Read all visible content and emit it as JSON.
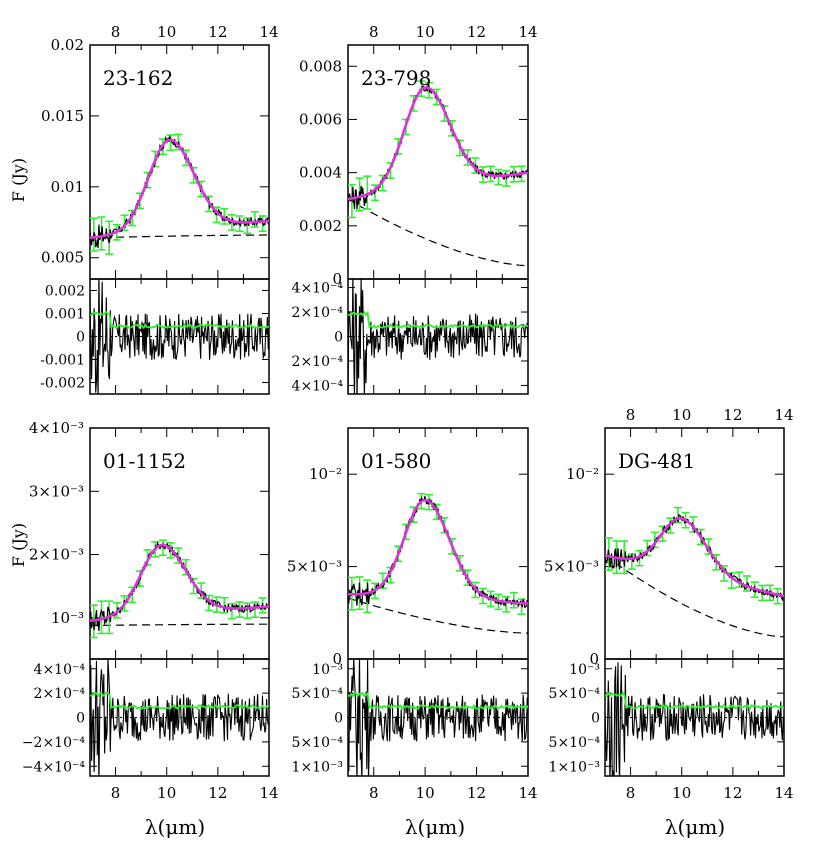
{
  "figure": {
    "ylabel": "F (Jy)",
    "xlabel": "λ(μm)"
  },
  "colors": {
    "data": "#000000",
    "error_bars": "#33ee33",
    "model": "#dd33dd",
    "photosphere": "#000000",
    "residual_error": "#33ee33"
  },
  "chart_data": [
    {
      "type": "line",
      "name": "23-162",
      "x_range": [
        7,
        14
      ],
      "top_x_ticks": [
        "8",
        "10",
        "12",
        "14"
      ],
      "y_range": [
        0.0035,
        0.02
      ],
      "y_ticks": [
        {
          "v": 0.005,
          "label": "0.005"
        },
        {
          "v": 0.01,
          "label": "0.01"
        },
        {
          "v": 0.015,
          "label": "0.015"
        },
        {
          "v": 0.02,
          "label": "0.02"
        }
      ],
      "model_peak": 0.0133,
      "peak_wavelength": 10.1,
      "model_start": 0.0064,
      "model_end": 0.0076,
      "photosphere": [
        0.0064,
        0.0066
      ],
      "residual_range": [
        -0.0025,
        0.0025
      ],
      "residual_ticks": [
        {
          "v": 0.002,
          "label": "0.002"
        },
        {
          "v": 0.001,
          "label": "0.001"
        },
        {
          "v": 0,
          "label": "0"
        },
        {
          "v": -0.001,
          "label": "-0.001"
        },
        {
          "v": -0.002,
          "label": "-0.002"
        }
      ]
    },
    {
      "type": "line",
      "name": "23-798",
      "x_range": [
        7,
        14
      ],
      "top_x_ticks": [
        "8",
        "10",
        "12",
        "14"
      ],
      "y_range": [
        0,
        0.0088
      ],
      "y_ticks": [
        {
          "v": 0,
          "label": "0"
        },
        {
          "v": 0.002,
          "label": "0.002"
        },
        {
          "v": 0.004,
          "label": "0.004"
        },
        {
          "v": 0.006,
          "label": "0.006"
        },
        {
          "v": 0.008,
          "label": "0.008"
        }
      ],
      "model_peak": 0.0072,
      "peak_wavelength": 10.0,
      "model_start": 0.003,
      "model_end": 0.004,
      "photosphere": [
        0.003,
        0.0005
      ],
      "residual_range": [
        -0.00047,
        0.00047
      ],
      "residual_ticks": [
        {
          "v": 0.0004,
          "label": "4×10⁻⁴"
        },
        {
          "v": 0.0002,
          "label": "2×10⁻⁴"
        },
        {
          "v": 0,
          "label": "0"
        },
        {
          "v": -0.0002,
          "label": "2×10⁻⁴"
        },
        {
          "v": -0.0004,
          "label": "4×10⁻⁴"
        }
      ]
    },
    {
      "type": "line",
      "name": "01-1152",
      "x_range": [
        7,
        14
      ],
      "bottom_x_ticks": [
        "8",
        "10",
        "12",
        "14"
      ],
      "y_range": [
        0.00035,
        0.004
      ],
      "y_ticks": [
        {
          "v": 0.001,
          "label": "10⁻³"
        },
        {
          "v": 0.002,
          "label": "2×10⁻³"
        },
        {
          "v": 0.003,
          "label": "3×10⁻³"
        },
        {
          "v": 0.004,
          "label": "4×10⁻³"
        }
      ],
      "model_peak": 0.00215,
      "peak_wavelength": 9.8,
      "model_start": 0.00095,
      "model_end": 0.00118,
      "photosphere": [
        0.00088,
        0.0009
      ],
      "residual_range": [
        -0.00048,
        0.00048
      ],
      "residual_ticks": [
        {
          "v": 0.0004,
          "label": "4×10⁻⁴"
        },
        {
          "v": 0.0002,
          "label": "2×10⁻⁴"
        },
        {
          "v": 0,
          "label": "0"
        },
        {
          "v": -0.0002,
          "label": "−2×10⁻⁴"
        },
        {
          "v": -0.0004,
          "label": "−4×10⁻⁴"
        }
      ]
    },
    {
      "type": "line",
      "name": "01-580",
      "x_range": [
        7,
        14
      ],
      "bottom_x_ticks": [
        "8",
        "10",
        "12",
        "14"
      ],
      "y_range": [
        0,
        0.0125
      ],
      "y_ticks": [
        {
          "v": 0,
          "label": "0"
        },
        {
          "v": 0.005,
          "label": "5×10⁻³"
        },
        {
          "v": 0.01,
          "label": "10⁻²"
        }
      ],
      "model_peak": 0.0086,
      "peak_wavelength": 10.0,
      "model_start": 0.0035,
      "model_end": 0.003,
      "photosphere": [
        0.0033,
        0.0014
      ],
      "residual_range": [
        -0.0012,
        0.0012
      ],
      "residual_ticks": [
        {
          "v": 0.001,
          "label": "10⁻³"
        },
        {
          "v": 0.0005,
          "label": "5×10⁻⁴"
        },
        {
          "v": 0,
          "label": "0"
        },
        {
          "v": -0.0005,
          "label": "5×10⁻⁴"
        },
        {
          "v": -0.001,
          "label": "1×10⁻³"
        }
      ]
    },
    {
      "type": "line",
      "name": "DG-481",
      "x_range": [
        7,
        14
      ],
      "top_x_ticks": [
        "8",
        "10",
        "12",
        "14"
      ],
      "bottom_x_ticks": [
        "8",
        "10",
        "12",
        "14"
      ],
      "y_range": [
        0,
        0.0125
      ],
      "y_ticks": [
        {
          "v": 0,
          "label": "0"
        },
        {
          "v": 0.005,
          "label": "5×10⁻³"
        },
        {
          "v": 0.01,
          "label": "10⁻²"
        }
      ],
      "model_peak": 0.0076,
      "peak_wavelength": 10.0,
      "model_start": 0.0056,
      "model_end": 0.0034,
      "photosphere": [
        0.0056,
        0.0012
      ],
      "residual_range": [
        -0.0012,
        0.0012
      ],
      "residual_ticks": [
        {
          "v": 0.001,
          "label": "10⁻³"
        },
        {
          "v": 0.0005,
          "label": "5×10⁻⁴"
        },
        {
          "v": 0,
          "label": "0"
        },
        {
          "v": -0.0005,
          "label": "5×10⁻⁴"
        },
        {
          "v": -0.001,
          "label": "1×10⁻³"
        }
      ]
    }
  ]
}
